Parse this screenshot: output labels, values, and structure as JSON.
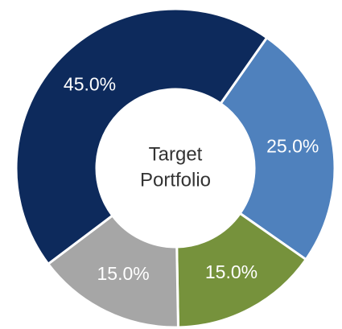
{
  "chart_data": {
    "type": "donut",
    "center_text": [
      "Target",
      "Portfolio"
    ],
    "values": [
      25,
      15,
      15,
      45
    ],
    "value_labels": [
      "25.0%",
      "15.0%",
      "15.0%",
      "45.0%"
    ],
    "colors": [
      "#4f81bd",
      "#76923c",
      "#a6a6a6",
      "#0d2a5c"
    ]
  }
}
